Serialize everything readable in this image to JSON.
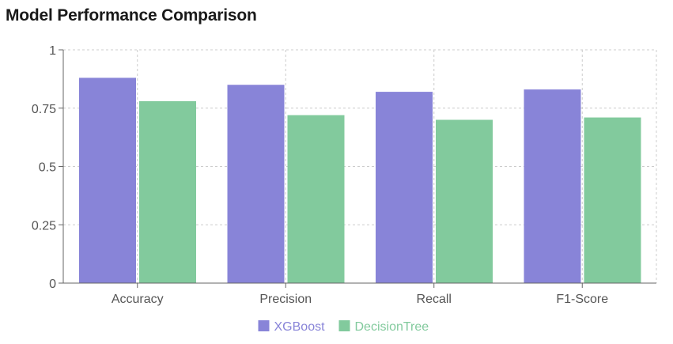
{
  "title": "Model Performance Comparison",
  "chart_data": {
    "type": "bar",
    "categories": [
      "Accuracy",
      "Precision",
      "Recall",
      "F1-Score"
    ],
    "series": [
      {
        "name": "XGBoost",
        "values": [
          0.88,
          0.85,
          0.82,
          0.83
        ],
        "color": "#8884d8"
      },
      {
        "name": "DecisionTree",
        "values": [
          0.78,
          0.72,
          0.7,
          0.71
        ],
        "color": "#82ca9d"
      }
    ],
    "yticks": [
      "0",
      "0.25",
      "0.5",
      "0.75",
      "1"
    ],
    "ylim": [
      0,
      1
    ],
    "grid": true,
    "legend": "bottom"
  }
}
